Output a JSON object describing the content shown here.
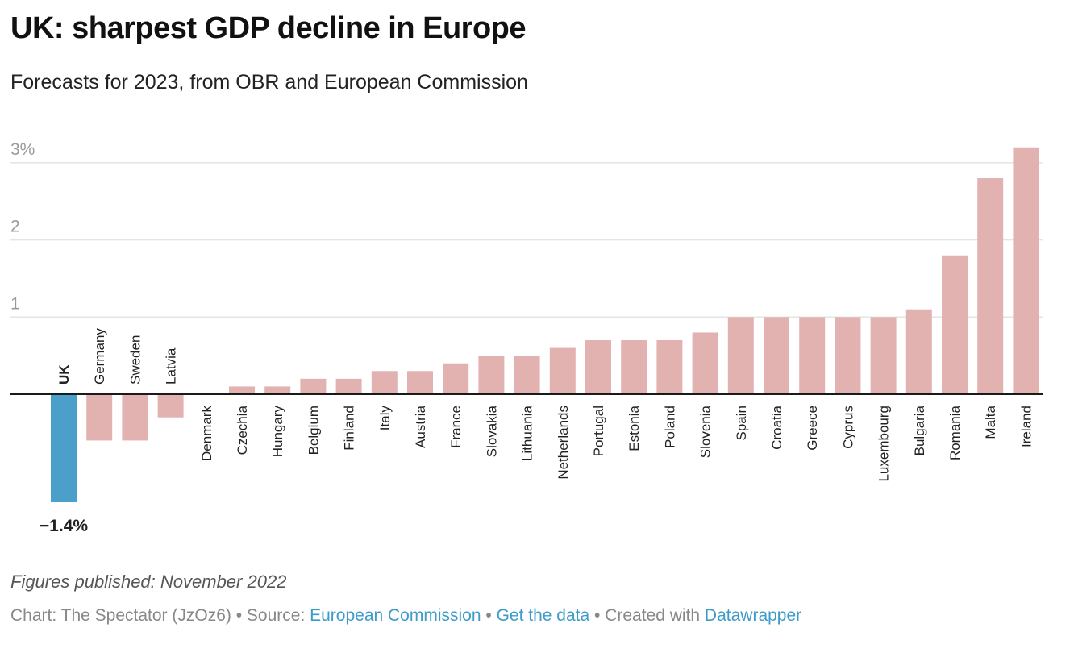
{
  "header": {
    "title": "UK: sharpest GDP decline in Europe",
    "subtitle": "Forecasts for 2023, from OBR and European Commission"
  },
  "footer": {
    "note": "Figures published: November 2022",
    "credit_prefix": "Chart: The Spectator (JzOz6) • Source: ",
    "source_link": "European Commission",
    "sep1": " • ",
    "data_link": "Get the data",
    "sep2": " • Created with ",
    "tool_link": "Datawrapper"
  },
  "colors": {
    "highlight": "#4a9fcb",
    "default": "#e2b2b1",
    "grid": "#e4e4e4",
    "axis": "#1a1a1a",
    "tick_label": "#9a9a9a"
  },
  "chart_data": {
    "type": "bar",
    "title": "UK: sharpest GDP decline in Europe",
    "subtitle": "Forecasts for 2023, from OBR and European Commission",
    "xlabel": "",
    "ylabel": "",
    "unit": "%",
    "ylim": [
      -1.4,
      3.2
    ],
    "yticks": [
      1,
      2,
      3
    ],
    "ytick_labels": [
      "1",
      "2",
      "3%"
    ],
    "grid": true,
    "legend": "none",
    "highlight": "UK",
    "highlight_label": "−1.4%",
    "categories": [
      "UK",
      "Germany",
      "Sweden",
      "Latvia",
      "Denmark",
      "Czechia",
      "Hungary",
      "Belgium",
      "Finland",
      "Italy",
      "Austria",
      "France",
      "Slovakia",
      "Lithuania",
      "Netherlands",
      "Portugal",
      "Estonia",
      "Poland",
      "Slovenia",
      "Spain",
      "Croatia",
      "Greece",
      "Cyprus",
      "Luxembourg",
      "Bulgaria",
      "Romania",
      "Malta",
      "Ireland"
    ],
    "values": [
      -1.4,
      -0.6,
      -0.6,
      -0.3,
      0.0,
      0.1,
      0.1,
      0.2,
      0.2,
      0.3,
      0.3,
      0.4,
      0.5,
      0.5,
      0.6,
      0.7,
      0.7,
      0.7,
      0.8,
      1.0,
      1.0,
      1.0,
      1.0,
      1.0,
      1.1,
      1.8,
      2.8,
      3.2
    ]
  }
}
